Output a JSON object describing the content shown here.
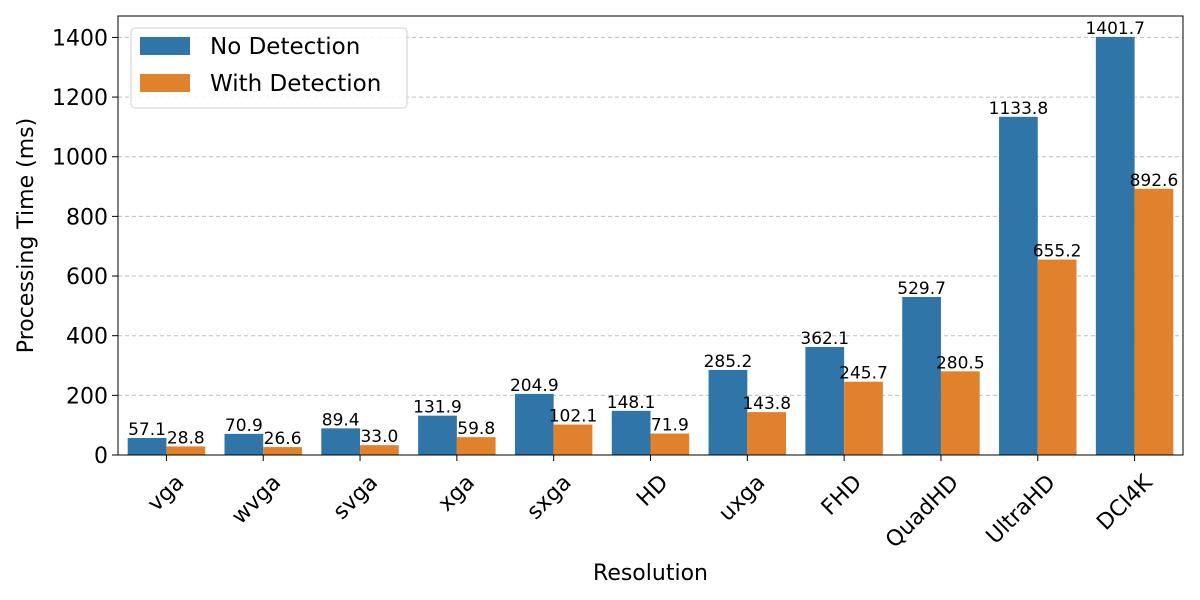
{
  "chart_data": {
    "type": "bar",
    "title": "",
    "xlabel": "Resolution",
    "ylabel": "Processing Time (ms)",
    "categories": [
      "vga",
      "wvga",
      "svga",
      "xga",
      "sxga",
      "HD",
      "uxga",
      "FHD",
      "QuadHD",
      "UltraHD",
      "DCI4K"
    ],
    "series": [
      {
        "name": "No Detection",
        "color": "#2f75a8",
        "values": [
          57.1,
          70.9,
          89.4,
          131.9,
          204.9,
          148.1,
          285.2,
          362.1,
          529.7,
          1133.8,
          1401.7
        ],
        "labels": [
          "57.1",
          "70.9",
          "89.4",
          "131.9",
          "204.9",
          "148.1",
          "285.2",
          "362.1",
          "529.7",
          "1133.8",
          "1401.7"
        ]
      },
      {
        "name": "With Detection",
        "color": "#e1812c",
        "values": [
          28.8,
          26.6,
          33.0,
          59.8,
          102.1,
          71.9,
          143.8,
          245.7,
          280.5,
          655.2,
          892.6
        ],
        "labels": [
          "28.8",
          "26.6",
          "33.0",
          "59.8",
          "102.1",
          "71.9",
          "143.8",
          "245.7",
          "280.5",
          "655.2",
          "892.6"
        ]
      }
    ],
    "ylim": [
      0,
      1471.785
    ],
    "yticks": [
      0,
      200,
      400,
      600,
      800,
      1000,
      1200,
      1400
    ],
    "ytick_labels": [
      "0",
      "200",
      "400",
      "600",
      "800",
      "1000",
      "1200",
      "1400"
    ],
    "grid": "y-dashed",
    "legend_position": "top-left"
  }
}
